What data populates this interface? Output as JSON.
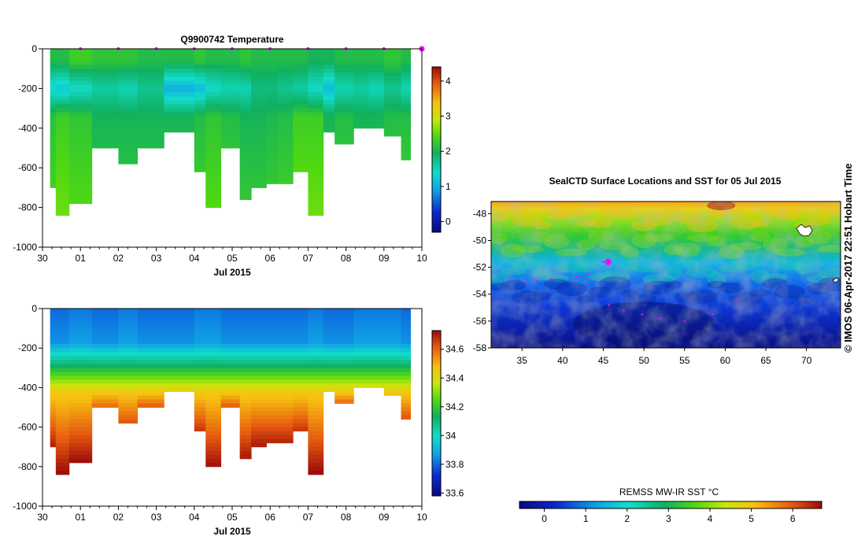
{
  "chart_data": [
    {
      "type": "heatmap",
      "title": "Q9900742  Temperature",
      "xlabel": "Jul 2015",
      "x_tick_labels": [
        "30",
        "01",
        "02",
        "03",
        "04",
        "05",
        "06",
        "07",
        "08",
        "09",
        "10"
      ],
      "x_range_days": [
        0,
        10
      ],
      "y_tick_labels": [
        "0",
        "-200",
        "-400",
        "-600",
        "-800",
        "-1000"
      ],
      "y_ticks": [
        0,
        -200,
        -400,
        -600,
        -800,
        -1000
      ],
      "ylim": [
        -1000,
        0
      ],
      "colorbar_ticks": [
        "0",
        "1",
        "2",
        "3",
        "4"
      ],
      "colorbar_range": [
        -0.3,
        4.4
      ],
      "profile_markers_days": [
        1,
        2,
        3,
        4,
        5,
        6,
        7,
        8,
        9,
        10
      ],
      "profiles": {
        "start_day": [
          0.2,
          0.35,
          0.7,
          1.3,
          2.0,
          2.5,
          3.2,
          4.0,
          4.3,
          4.7,
          5.2,
          5.5,
          5.9,
          6.2,
          6.6,
          7.0,
          7.4,
          7.7,
          8.2,
          8.6,
          9.0,
          9.45
        ],
        "max_depth": [
          700,
          840,
          770,
          500,
          575,
          500,
          420,
          610,
          795,
          500,
          745,
          685,
          675,
          675,
          610,
          835,
          415,
          465,
          395,
          395,
          430,
          560
        ],
        "temp_0_50": [
          2.1,
          2.1,
          2.3,
          2.2,
          2.2,
          2.1,
          2.1,
          2.2,
          2.1,
          2.1,
          2.2,
          2.1,
          2.1,
          2.1,
          2.1,
          2.0,
          2.0,
          2.1,
          2.1,
          2.1,
          2.2,
          2.1
        ],
        "temp_200": [
          1.3,
          1.2,
          1.4,
          1.6,
          1.5,
          1.7,
          1.0,
          1.1,
          1.4,
          1.5,
          1.5,
          1.8,
          1.8,
          1.7,
          1.6,
          1.4,
          1.1,
          1.5,
          1.6,
          1.5,
          1.7,
          1.5
        ],
        "temp_deep": [
          2.15,
          2.3,
          2.2,
          2.0,
          2.0,
          2.0,
          2.0,
          2.1,
          2.2,
          2.1,
          2.0,
          2.0,
          2.05,
          2.1,
          2.3,
          2.3,
          2.0,
          2.1,
          2.0,
          2.0,
          2.1,
          2.1
        ]
      }
    },
    {
      "type": "heatmap",
      "title": "",
      "xlabel": "Jul 2015",
      "x_tick_labels": [
        "30",
        "01",
        "02",
        "03",
        "04",
        "05",
        "06",
        "07",
        "08",
        "09",
        "10"
      ],
      "x_range_days": [
        0,
        10
      ],
      "y_tick_labels": [
        "0",
        "-200",
        "-400",
        "-600",
        "-800",
        "-1000"
      ],
      "y_ticks": [
        0,
        -200,
        -400,
        -600,
        -800,
        -1000
      ],
      "ylim": [
        -1000,
        0
      ],
      "colorbar_ticks": [
        "33.6",
        "33.8",
        "34",
        "34.2",
        "34.4",
        "34.6"
      ],
      "colorbar_range": [
        33.58,
        34.73
      ],
      "profiles": {
        "surface_salinity": [
          33.8,
          33.8,
          33.82,
          33.8,
          33.82,
          33.8,
          33.8,
          33.82,
          33.82,
          33.8,
          33.8,
          33.8,
          33.8,
          33.8,
          33.8,
          33.82,
          33.8,
          33.8,
          33.82,
          33.82,
          33.82,
          33.8
        ],
        "bottom_salinity": [
          34.7,
          34.73,
          34.72,
          34.6,
          34.62,
          34.62,
          34.55,
          34.66,
          34.72,
          34.62,
          34.7,
          34.7,
          34.69,
          34.69,
          34.66,
          34.73,
          34.56,
          34.6,
          34.55,
          34.55,
          34.58,
          34.63
        ]
      }
    },
    {
      "type": "heatmap",
      "title": "SealCTD Surface Locations and SST for 05 Jul 2015",
      "xlabel": "",
      "x_tick_labels": [
        "35",
        "40",
        "45",
        "50",
        "55",
        "60",
        "65",
        "70"
      ],
      "x_ticks": [
        35,
        40,
        45,
        50,
        55,
        60,
        65,
        70
      ],
      "xlim": [
        31.2,
        74.2
      ],
      "y_tick_labels": [
        "-48",
        "-50",
        "-52",
        "-54",
        "-56",
        "-58"
      ],
      "y_ticks": [
        -48,
        -50,
        -52,
        -54,
        -56,
        -58
      ],
      "ylim": [
        -58,
        -47.1
      ],
      "colorbar_label": "REMSS MW-IR SST °C",
      "colorbar_ticks": [
        "0",
        "1",
        "2",
        "3",
        "4",
        "5",
        "6"
      ],
      "colorbar_range": [
        -0.6,
        6.7
      ],
      "sst_front_latitudes": [
        -48.3,
        -50.3,
        -52.3,
        -53.8
      ],
      "track_points": [
        [
          45.0,
          -51.6
        ],
        [
          45.6,
          -51.5
        ],
        [
          43.2,
          -52.5
        ],
        [
          41.7,
          -52.7
        ],
        [
          38.5,
          -52.9
        ],
        [
          36.8,
          -53.0
        ],
        [
          35.4,
          -53.1
        ],
        [
          45.7,
          -54.8
        ],
        [
          47.5,
          -55.2
        ],
        [
          49.8,
          -55.5
        ],
        [
          52.0,
          -55.8
        ],
        [
          55.0,
          -56.0
        ],
        [
          58.5,
          -55.5
        ],
        [
          61.5,
          -54.4
        ]
      ],
      "highlight_point": [
        45.6,
        -51.6
      ]
    }
  ],
  "credit": "© IMOS 06-Apr-2017 22:51 Hobart Time"
}
